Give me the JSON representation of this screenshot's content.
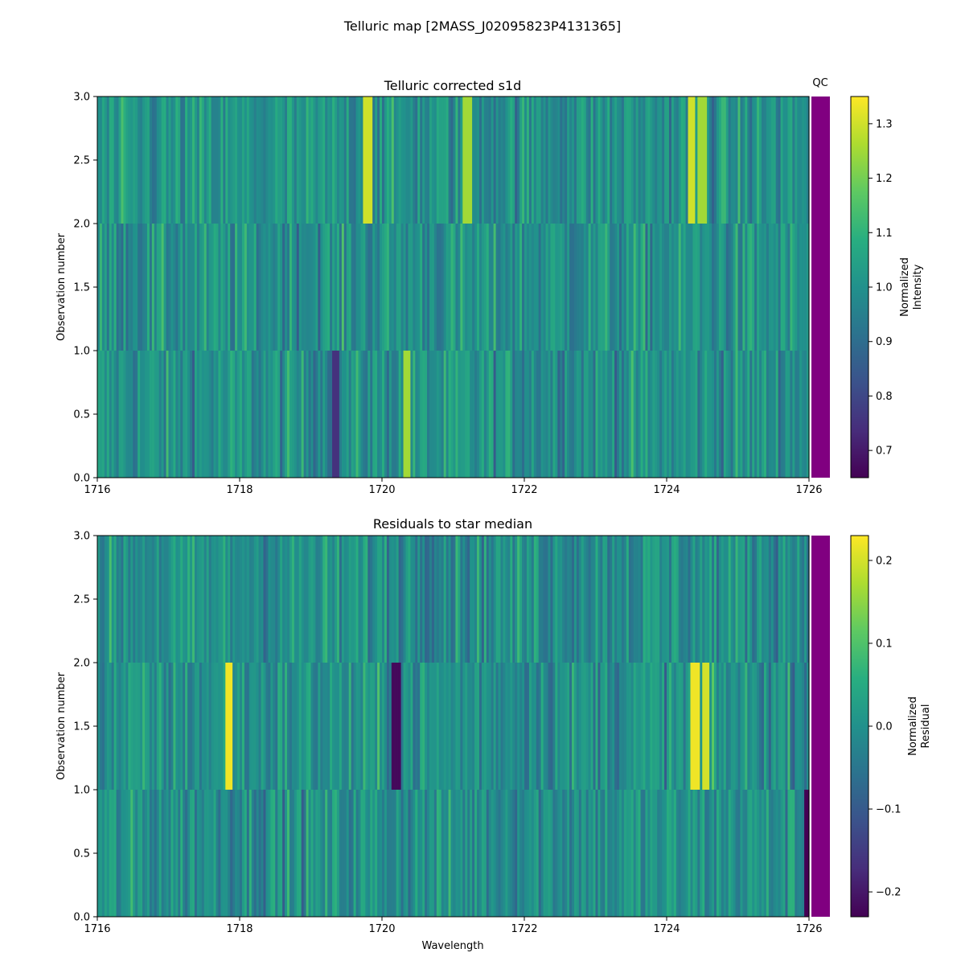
{
  "suptitle": "Telluric map [2MASS_J02095823P4131365]",
  "qc_label": "QC",
  "qc_color": "#800080",
  "chart_data": [
    {
      "type": "heatmap",
      "title": "Telluric corrected s1d",
      "xlabel": "",
      "ylabel": "Observation number",
      "xlim": [
        1716,
        1726
      ],
      "ylim": [
        0,
        3
      ],
      "xticks": [
        1716,
        1718,
        1720,
        1722,
        1724,
        1726
      ],
      "yticks": [
        0.0,
        0.5,
        1.0,
        1.5,
        2.0,
        2.5,
        3.0
      ],
      "xtick_labels": [
        "1716",
        "1718",
        "1720",
        "1722",
        "1724",
        "1726"
      ],
      "ytick_labels": [
        "0.0",
        "0.5",
        "1.0",
        "1.5",
        "2.0",
        "2.5",
        "3.0"
      ],
      "rows": 3,
      "colormap": "viridis",
      "colorbar": {
        "label_lines": [
          "Normalized",
          "Intensity"
        ],
        "vmin": 0.65,
        "vmax": 1.35,
        "ticks": [
          0.7,
          0.8,
          0.9,
          1.0,
          1.1,
          1.2,
          1.3
        ],
        "tick_labels": [
          "0.7",
          "0.8",
          "0.9",
          "1.0",
          "1.1",
          "1.2",
          "1.3"
        ]
      },
      "features": [
        {
          "row": 2,
          "x": 1724.35,
          "value": 1.3
        },
        {
          "row": 2,
          "x": 1724.5,
          "value": 1.25
        },
        {
          "row": 0,
          "x": 1720.35,
          "value": 1.25
        },
        {
          "row": 2,
          "x": 1721.2,
          "value": 1.25
        },
        {
          "row": 0,
          "x": 1719.35,
          "value": 0.75
        },
        {
          "row": 2,
          "x": 1719.8,
          "value": 1.3
        }
      ],
      "qc": "pass"
    },
    {
      "type": "heatmap",
      "title": "Residuals to star median",
      "xlabel": "Wavelength",
      "ylabel": "Observation number",
      "xlim": [
        1716,
        1726
      ],
      "ylim": [
        0,
        3
      ],
      "xticks": [
        1716,
        1718,
        1720,
        1722,
        1724,
        1726
      ],
      "yticks": [
        0.0,
        0.5,
        1.0,
        1.5,
        2.0,
        2.5,
        3.0
      ],
      "xtick_labels": [
        "1716",
        "1718",
        "1720",
        "1722",
        "1724",
        "1726"
      ],
      "ytick_labels": [
        "0.0",
        "0.5",
        "1.0",
        "1.5",
        "2.0",
        "2.5",
        "3.0"
      ],
      "rows": 3,
      "colormap": "viridis",
      "colorbar": {
        "label_lines": [
          "Normalized",
          "Residual"
        ],
        "vmin": -0.23,
        "vmax": 0.23,
        "ticks": [
          -0.2,
          -0.1,
          0.0,
          0.1,
          0.2
        ],
        "tick_labels": [
          "−0.2",
          "−0.1",
          "0.0",
          "0.1",
          "0.2"
        ]
      },
      "features": [
        {
          "row": 1,
          "x": 1717.85,
          "value": 0.22
        },
        {
          "row": 1,
          "x": 1720.2,
          "value": -0.22
        },
        {
          "row": 1,
          "x": 1724.4,
          "value": 0.22
        },
        {
          "row": 1,
          "x": 1724.55,
          "value": 0.2
        },
        {
          "row": 0,
          "x": 1726.0,
          "value": -0.23
        }
      ],
      "qc": "pass"
    }
  ]
}
